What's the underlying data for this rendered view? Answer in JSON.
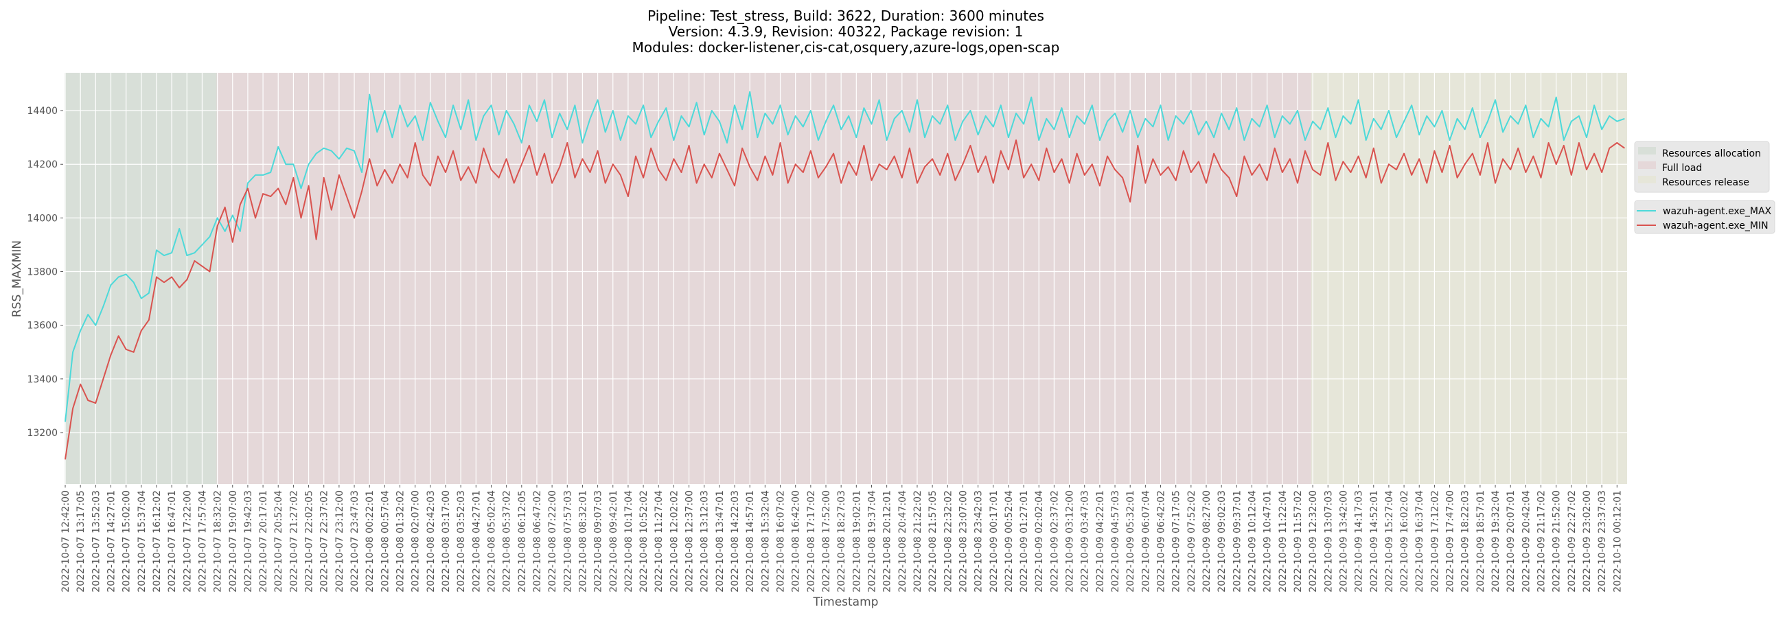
{
  "chart_data": {
    "type": "line",
    "title": [
      "Pipeline: Test_stress, Build: 3622, Duration: 3600 minutes",
      "Version: 4.3.9, Revision: 40322, Package revision: 1",
      "Modules: docker-listener,cis-cat,osquery,azure-logs,open-scap"
    ],
    "xlabel": "Timestamp",
    "ylabel": "RSS_MAXMIN",
    "ylim": [
      13008,
      14541
    ],
    "yticks": [
      13200,
      13400,
      13600,
      13800,
      14000,
      14200,
      14400
    ],
    "grid": true,
    "points_per_tick": 2,
    "xtick_labels": [
      "2022-10-07 12:42:00",
      "2022-10-07 13:17:05",
      "2022-10-07 13:52:03",
      "2022-10-07 14:27:01",
      "2022-10-07 15:02:00",
      "2022-10-07 15:37:04",
      "2022-10-07 16:12:02",
      "2022-10-07 16:47:01",
      "2022-10-07 17:22:00",
      "2022-10-07 17:57:04",
      "2022-10-07 18:32:02",
      "2022-10-07 19:07:00",
      "2022-10-07 19:42:03",
      "2022-10-07 20:17:01",
      "2022-10-07 20:52:04",
      "2022-10-07 21:27:02",
      "2022-10-07 22:02:05",
      "2022-10-07 22:37:02",
      "2022-10-07 23:12:00",
      "2022-10-07 23:47:03",
      "2022-10-08 00:22:01",
      "2022-10-08 00:57:04",
      "2022-10-08 01:32:02",
      "2022-10-08 02:07:00",
      "2022-10-08 02:42:03",
      "2022-10-08 03:17:00",
      "2022-10-08 03:52:03",
      "2022-10-08 04:27:01",
      "2022-10-08 05:02:04",
      "2022-10-08 05:37:02",
      "2022-10-08 06:12:05",
      "2022-10-08 06:47:02",
      "2022-10-08 07:22:00",
      "2022-10-08 07:57:03",
      "2022-10-08 08:32:01",
      "2022-10-08 09:07:03",
      "2022-10-08 09:42:01",
      "2022-10-08 10:17:04",
      "2022-10-08 10:52:02",
      "2022-10-08 11:27:04",
      "2022-10-08 12:02:02",
      "2022-10-08 12:37:00",
      "2022-10-08 13:12:03",
      "2022-10-08 13:47:01",
      "2022-10-08 14:22:03",
      "2022-10-08 14:57:01",
      "2022-10-08 15:32:04",
      "2022-10-08 16:07:02",
      "2022-10-08 16:42:00",
      "2022-10-08 17:17:02",
      "2022-10-08 17:52:00",
      "2022-10-08 18:27:03",
      "2022-10-08 19:02:01",
      "2022-10-08 19:37:04",
      "2022-10-08 20:12:01",
      "2022-10-08 20:47:04",
      "2022-10-08 21:22:02",
      "2022-10-08 21:57:05",
      "2022-10-08 22:32:02",
      "2022-10-08 23:07:00",
      "2022-10-08 23:42:03",
      "2022-10-09 00:17:01",
      "2022-10-09 00:52:04",
      "2022-10-09 01:27:01",
      "2022-10-09 02:02:04",
      "2022-10-09 02:37:02",
      "2022-10-09 03:12:00",
      "2022-10-09 03:47:03",
      "2022-10-09 04:22:01",
      "2022-10-09 04:57:03",
      "2022-10-09 05:32:01",
      "2022-10-09 06:07:04",
      "2022-10-09 06:42:02",
      "2022-10-09 07:17:05",
      "2022-10-09 07:52:02",
      "2022-10-09 08:27:00",
      "2022-10-09 09:02:03",
      "2022-10-09 09:37:01",
      "2022-10-09 10:12:04",
      "2022-10-09 10:47:01",
      "2022-10-09 11:22:04",
      "2022-10-09 11:57:02",
      "2022-10-09 12:32:00",
      "2022-10-09 13:07:03",
      "2022-10-09 13:42:00",
      "2022-10-09 14:17:03",
      "2022-10-09 14:52:01",
      "2022-10-09 15:27:04",
      "2022-10-09 16:02:02",
      "2022-10-09 16:37:04",
      "2022-10-09 17:12:02",
      "2022-10-09 17:47:00",
      "2022-10-09 18:22:03",
      "2022-10-09 18:57:01",
      "2022-10-09 19:32:04",
      "2022-10-09 20:07:01",
      "2022-10-09 20:42:04",
      "2022-10-09 21:17:02",
      "2022-10-09 21:52:00",
      "2022-10-09 22:27:02",
      "2022-10-09 23:02:00",
      "2022-10-09 23:37:03",
      "2022-10-10 00:12:01"
    ],
    "phases": [
      {
        "name": "Resources allocation",
        "start_tick": -0.05,
        "end_tick": 9.95,
        "color": "#d8dfd8"
      },
      {
        "name": "Full load",
        "start_tick": 9.95,
        "end_tick": 81.9,
        "color": "#e5d8d9"
      },
      {
        "name": "Resources release",
        "start_tick": 81.9,
        "end_tick": 102.7,
        "color": "#e6e6d9"
      }
    ],
    "legend_placement": "right",
    "series": [
      {
        "name": "wazuh-agent.exe_MAX",
        "color": "#4dd9d9",
        "values": [
          13240,
          13500,
          13580,
          13640,
          13600,
          13670,
          13750,
          13780,
          13790,
          13760,
          13700,
          13720,
          13880,
          13860,
          13870,
          13960,
          13860,
          13870,
          13900,
          13930,
          14000,
          13950,
          14010,
          13950,
          14130,
          14160,
          14160,
          14170,
          14265,
          14200,
          14200,
          14110,
          14200,
          14240,
          14260,
          14250,
          14220,
          14260,
          14250,
          14170,
          14460,
          14320,
          14400,
          14300,
          14420,
          14340,
          14380,
          14290,
          14430,
          14360,
          14300,
          14420,
          14330,
          14440,
          14290,
          14380,
          14420,
          14310,
          14400,
          14350,
          14280,
          14420,
          14360,
          14440,
          14300,
          14390,
          14330,
          14420,
          14280,
          14370,
          14440,
          14320,
          14400,
          14290,
          14380,
          14350,
          14420,
          14300,
          14360,
          14410,
          14290,
          14380,
          14340,
          14430,
          14310,
          14400,
          14360,
          14280,
          14420,
          14330,
          14470,
          14300,
          14390,
          14350,
          14420,
          14310,
          14380,
          14340,
          14400,
          14290,
          14360,
          14420,
          14330,
          14380,
          14300,
          14410,
          14350,
          14440,
          14290,
          14370,
          14400,
          14320,
          14440,
          14300,
          14380,
          14350,
          14420,
          14290,
          14360,
          14400,
          14310,
          14380,
          14340,
          14420,
          14300,
          14390,
          14350,
          14450,
          14290,
          14370,
          14330,
          14410,
          14300,
          14380,
          14350,
          14420,
          14290,
          14360,
          14390,
          14320,
          14400,
          14300,
          14370,
          14340,
          14420,
          14290,
          14380,
          14350,
          14400,
          14310,
          14360,
          14300,
          14390,
          14330,
          14410,
          14290,
          14370,
          14340,
          14420,
          14300,
          14380,
          14350,
          14400,
          14290,
          14360,
          14330,
          14410,
          14300,
          14380,
          14350,
          14440,
          14290,
          14370,
          14330,
          14400,
          14300,
          14360,
          14420,
          14310,
          14380,
          14340,
          14400,
          14290,
          14370,
          14330,
          14410,
          14300,
          14360,
          14440,
          14320,
          14380,
          14350,
          14420,
          14300,
          14370,
          14340,
          14450,
          14290,
          14360,
          14380,
          14300,
          14420,
          14330,
          14380,
          14360,
          14370
        ]
      },
      {
        "name": "wazuh-agent.exe_MIN",
        "color": "#d9534f",
        "values": [
          13100,
          13290,
          13380,
          13320,
          13310,
          13400,
          13490,
          13560,
          13510,
          13500,
          13580,
          13620,
          13780,
          13760,
          13780,
          13740,
          13770,
          13840,
          13820,
          13800,
          13970,
          14040,
          13910,
          14050,
          14110,
          14000,
          14090,
          14080,
          14110,
          14050,
          14150,
          14000,
          14120,
          13920,
          14150,
          14030,
          14160,
          14080,
          14000,
          14100,
          14220,
          14120,
          14180,
          14130,
          14200,
          14150,
          14280,
          14160,
          14120,
          14230,
          14170,
          14250,
          14140,
          14190,
          14130,
          14260,
          14180,
          14150,
          14220,
          14130,
          14200,
          14270,
          14160,
          14240,
          14130,
          14190,
          14280,
          14150,
          14220,
          14170,
          14250,
          14130,
          14200,
          14160,
          14080,
          14230,
          14150,
          14260,
          14180,
          14140,
          14220,
          14170,
          14270,
          14130,
          14200,
          14150,
          14240,
          14180,
          14120,
          14260,
          14190,
          14140,
          14230,
          14160,
          14280,
          14130,
          14200,
          14170,
          14250,
          14150,
          14190,
          14240,
          14130,
          14210,
          14160,
          14270,
          14140,
          14200,
          14180,
          14230,
          14150,
          14260,
          14130,
          14190,
          14220,
          14160,
          14240,
          14140,
          14200,
          14270,
          14170,
          14230,
          14130,
          14250,
          14180,
          14290,
          14150,
          14200,
          14140,
          14260,
          14170,
          14220,
          14130,
          14240,
          14160,
          14200,
          14120,
          14230,
          14180,
          14150,
          14060,
          14270,
          14130,
          14220,
          14160,
          14190,
          14140,
          14250,
          14170,
          14210,
          14130,
          14240,
          14180,
          14150,
          14080,
          14230,
          14160,
          14200,
          14140,
          14260,
          14170,
          14220,
          14130,
          14250,
          14180,
          14160,
          14280,
          14140,
          14210,
          14170,
          14230,
          14150,
          14260,
          14130,
          14200,
          14180,
          14240,
          14160,
          14220,
          14130,
          14250,
          14170,
          14270,
          14150,
          14200,
          14240,
          14160,
          14280,
          14130,
          14220,
          14180,
          14260,
          14170,
          14230,
          14150,
          14280,
          14200,
          14270,
          14160,
          14280,
          14180,
          14240,
          14170,
          14260,
          14280,
          14260
        ]
      }
    ]
  }
}
